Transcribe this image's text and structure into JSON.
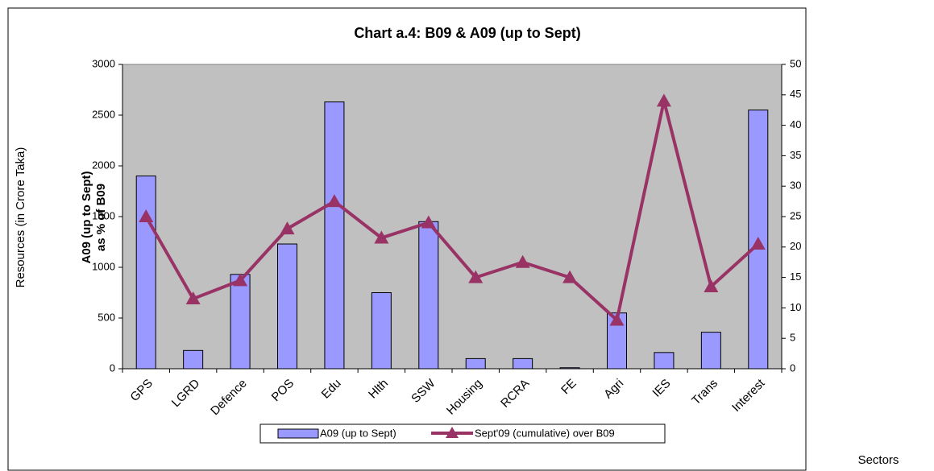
{
  "chart_data": {
    "type": "bar_line",
    "title": "Chart a.4: B09 & A09 (up to Sept)",
    "ylabel": "Resources (in Crore Taka)",
    "y2label": [
      "A09 (up to Sept)",
      "as % of B09"
    ],
    "xlabel": "Sectors",
    "categories": [
      "GPS",
      "LGRD",
      "Defence",
      "POS",
      "Edu",
      "Hlth",
      "SSW",
      "Housing",
      "RCRA",
      "FE",
      "Agri",
      "IES",
      "Trans",
      "Interest"
    ],
    "series": [
      {
        "name": "A09 (up to Sept)",
        "type": "bar",
        "color": "#9999ff",
        "values": [
          1900,
          180,
          930,
          1230,
          2630,
          750,
          1450,
          100,
          100,
          10,
          550,
          160,
          360,
          2550
        ]
      },
      {
        "name": "Sept'09 (cumulative) over B09",
        "type": "line",
        "axis": "y2",
        "color": "#993366",
        "values": [
          25,
          11.5,
          14.5,
          23,
          27.5,
          21.5,
          24,
          15,
          17.5,
          15,
          8,
          44,
          13.5,
          20.5
        ]
      }
    ],
    "ylim": [
      0,
      3000
    ],
    "yticks": [
      0,
      500,
      1000,
      1500,
      2000,
      2500,
      3000
    ],
    "y2lim": [
      0,
      50
    ],
    "y2ticks": [
      0,
      5,
      10,
      15,
      20,
      25,
      30,
      35,
      40,
      45,
      50
    ],
    "plot_background": "#c0c0c0"
  }
}
